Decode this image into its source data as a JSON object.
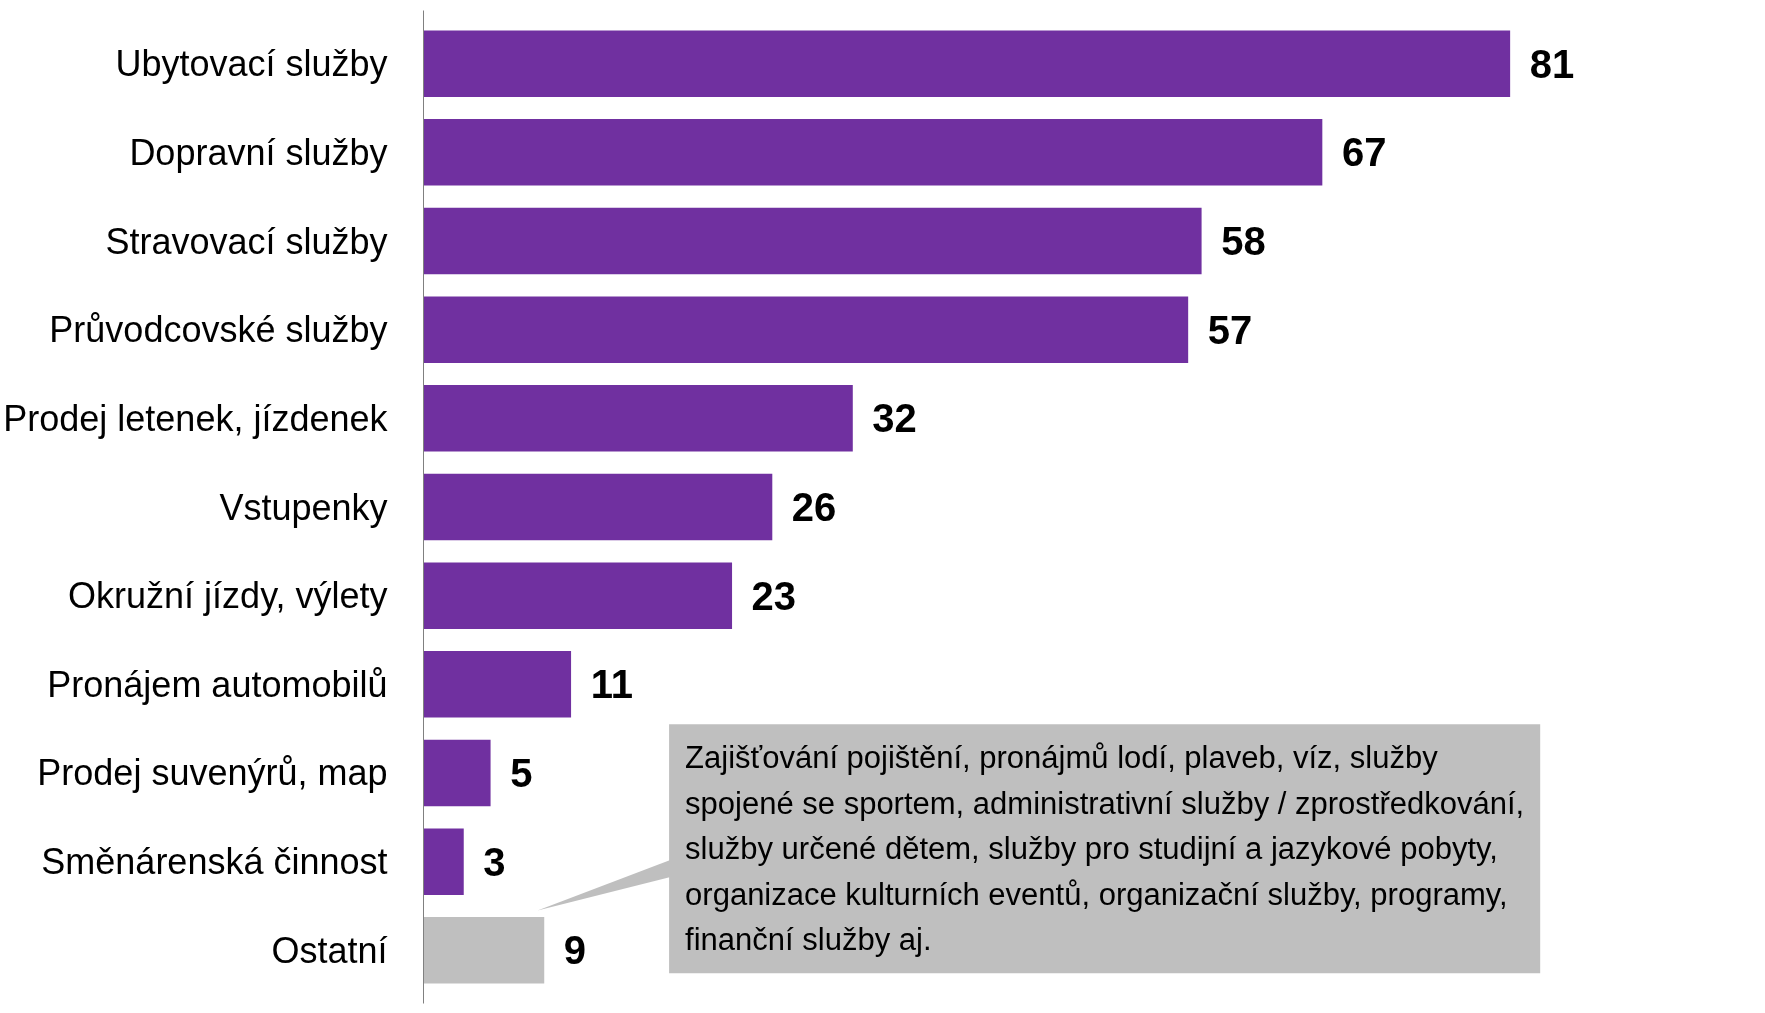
{
  "chart_data": {
    "type": "bar",
    "orientation": "horizontal",
    "tick_labels": "y",
    "data_labels": true,
    "categories": [
      "Ubytovací služby",
      "Dopravní služby",
      "Stravovací služby",
      "Průvodcovské služby",
      "Prodej letenek, jízdenek",
      "Vstupenky",
      "Okružní jízdy, výlety",
      "Pronájem automobilů",
      "Prodej suvenýrů, map",
      "Směnárenská činnost",
      "Ostatní"
    ],
    "values": [
      81,
      67,
      58,
      57,
      32,
      26,
      23,
      11,
      5,
      3,
      9
    ],
    "colors": [
      "#7030a0",
      "#7030a0",
      "#7030a0",
      "#7030a0",
      "#7030a0",
      "#7030a0",
      "#7030a0",
      "#7030a0",
      "#7030a0",
      "#7030a0",
      "#bfbfbf"
    ],
    "annotations": [
      "Zajišťování pojištění, pronájmů lodí, plaveb, víz, služby spojené se sportem, administrativní služby / zprostředkování, služby určené dětem, služby pro studijní a jazykové pobyty, organizace kulturních eventů, organizační služby, programy, finanční služby aj."
    ]
  }
}
